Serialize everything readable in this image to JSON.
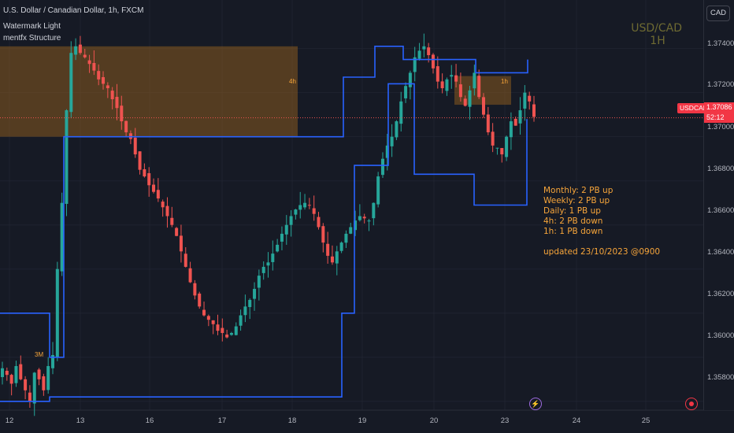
{
  "header": {
    "title": "U.S. Dollar / Canadian Dollar, 1h, FXCM",
    "indicator1": "Watermark Light",
    "indicator2": "mentfx Structure"
  },
  "watermark": {
    "line1": "USD/CAD",
    "line2": "1H"
  },
  "currency_button": "CAD",
  "last_price": {
    "symbol": "USDCAD",
    "price": "1.37086",
    "countdown": "52:12"
  },
  "zone_labels": {
    "h4": "4h",
    "h1": "1h",
    "m3": "3M"
  },
  "notes": [
    "Monthly: 2 PB up",
    "Weekly: 2 PB up",
    "Daily: 1 PB up",
    "4h: 2 PB down",
    "1h: 1 PB down",
    "",
    "updated 23/10/2023 @0900"
  ],
  "y_axis": {
    "ticks": [
      "1.37400",
      "1.37200",
      "1.37000",
      "1.36800",
      "1.36600",
      "1.36400",
      "1.36200",
      "1.36000",
      "1.35800"
    ]
  },
  "x_axis": {
    "ticks": [
      "12",
      "13",
      "16",
      "17",
      "18",
      "19",
      "20",
      "23",
      "24",
      "25"
    ]
  },
  "colors": {
    "up": "#26a69a",
    "down": "#ef5350",
    "structure": "#2962ff",
    "zone": "#a0661c",
    "background": "#161a25"
  },
  "chart_data": {
    "type": "candlestick",
    "symbol": "USDCAD",
    "timeframe": "1h",
    "ylim": [
      1.3576,
      1.3762
    ],
    "last_price": 1.37086,
    "closes": [
      1.3595,
      1.3592,
      1.3588,
      1.3596,
      1.359,
      1.3585,
      1.358,
      1.3593,
      1.359,
      1.3585,
      1.3596,
      1.3601,
      1.364,
      1.367,
      1.3712,
      1.3738,
      1.3741,
      1.3738,
      1.3736,
      1.3733,
      1.373,
      1.3726,
      1.3724,
      1.3722,
      1.3717,
      1.3713,
      1.3707,
      1.3702,
      1.3699,
      1.3692,
      1.3685,
      1.3682,
      1.3678,
      1.3675,
      1.3672,
      1.3668,
      1.3664,
      1.366,
      1.3655,
      1.3648,
      1.3641,
      1.3634,
      1.3628,
      1.3623,
      1.3619,
      1.3617,
      1.3615,
      1.3612,
      1.3611,
      1.3609,
      1.3611,
      1.3614,
      1.3619,
      1.3623,
      1.3626,
      1.3631,
      1.3637,
      1.3641,
      1.3643,
      1.3647,
      1.3651,
      1.3656,
      1.366,
      1.3664,
      1.3667,
      1.3669,
      1.367,
      1.3669,
      1.3665,
      1.3659,
      1.3652,
      1.3646,
      1.3643,
      1.3648,
      1.3652,
      1.3656,
      1.3659,
      1.3662,
      1.3664,
      1.3663,
      1.3662,
      1.367,
      1.3682,
      1.369,
      1.3696,
      1.37,
      1.3707,
      1.3716,
      1.3723,
      1.3729,
      1.3736,
      1.3739,
      1.3741,
      1.3737,
      1.3731,
      1.3725,
      1.3722,
      1.3726,
      1.3728,
      1.3725,
      1.3718,
      1.3714,
      1.3721,
      1.3729,
      1.3718,
      1.371,
      1.3702,
      1.3696,
      1.3695,
      1.3692,
      1.37,
      1.3707,
      1.3705,
      1.3712,
      1.372,
      1.3716,
      1.3709
    ]
  }
}
